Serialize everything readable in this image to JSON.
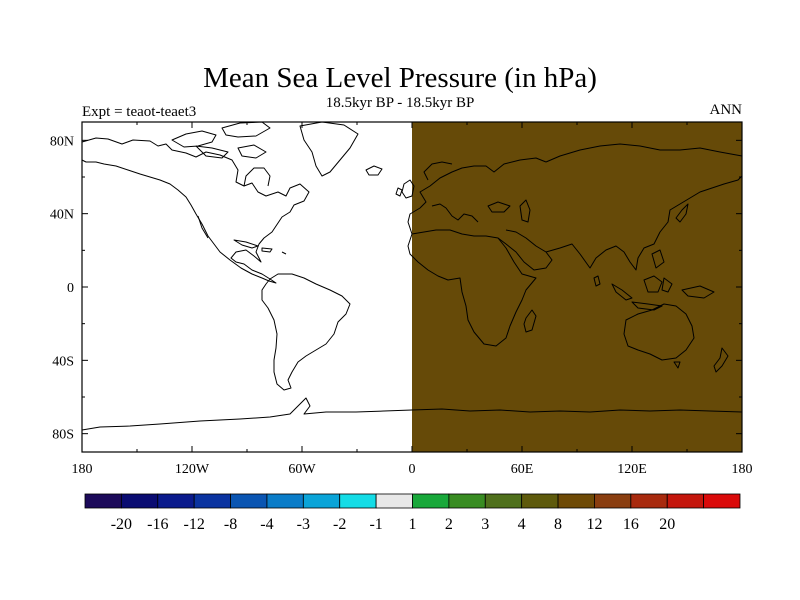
{
  "title": "Mean Sea Level Pressure (in hPa)",
  "subtitle": "18.5kyr BP - 18.5kyr BP",
  "left_label": "Expt = teaot-teaet3",
  "right_label": "ANN",
  "map": {
    "lon_range": [
      -180,
      180
    ],
    "lat_range": [
      -90,
      90
    ],
    "field": [
      {
        "lon_range": [
          -180,
          0
        ],
        "value_class": "-1 to 1",
        "color": "#ffffff"
      },
      {
        "lon_range": [
          0,
          180
        ],
        "value_class": "4 to 8",
        "color": "#664a08"
      }
    ],
    "coastline_color": "#000000",
    "lat_ticks": [
      {
        "value": 80,
        "label": "80N"
      },
      {
        "value": 40,
        "label": "40N"
      },
      {
        "value": 0,
        "label": "0"
      },
      {
        "value": -40,
        "label": "40S"
      },
      {
        "value": -80,
        "label": "80S"
      }
    ],
    "lon_ticks": [
      {
        "value": -180,
        "label": "180"
      },
      {
        "value": -120,
        "label": "120W"
      },
      {
        "value": -60,
        "label": "60W"
      },
      {
        "value": 0,
        "label": "0"
      },
      {
        "value": 60,
        "label": "60E"
      },
      {
        "value": 120,
        "label": "120E"
      },
      {
        "value": 180,
        "label": "180"
      }
    ]
  },
  "colorbar": {
    "colors": [
      "#1c0a5a",
      "#0a0c72",
      "#0a1a8c",
      "#0a33a0",
      "#0a55b2",
      "#0a7cc8",
      "#0aa4d8",
      "#14dce6",
      "#e8e8e8",
      "#18a83a",
      "#388c22",
      "#4f701c",
      "#5e5a0c",
      "#6e4a06",
      "#8a3e10",
      "#a82a0e",
      "#c4160c",
      "#da0a0a"
    ],
    "labels": [
      "-20",
      "-16",
      "-12",
      "-8",
      "-4",
      "-3",
      "-2",
      "-1",
      "1",
      "2",
      "3",
      "4",
      "8",
      "12",
      "16",
      "20"
    ]
  }
}
